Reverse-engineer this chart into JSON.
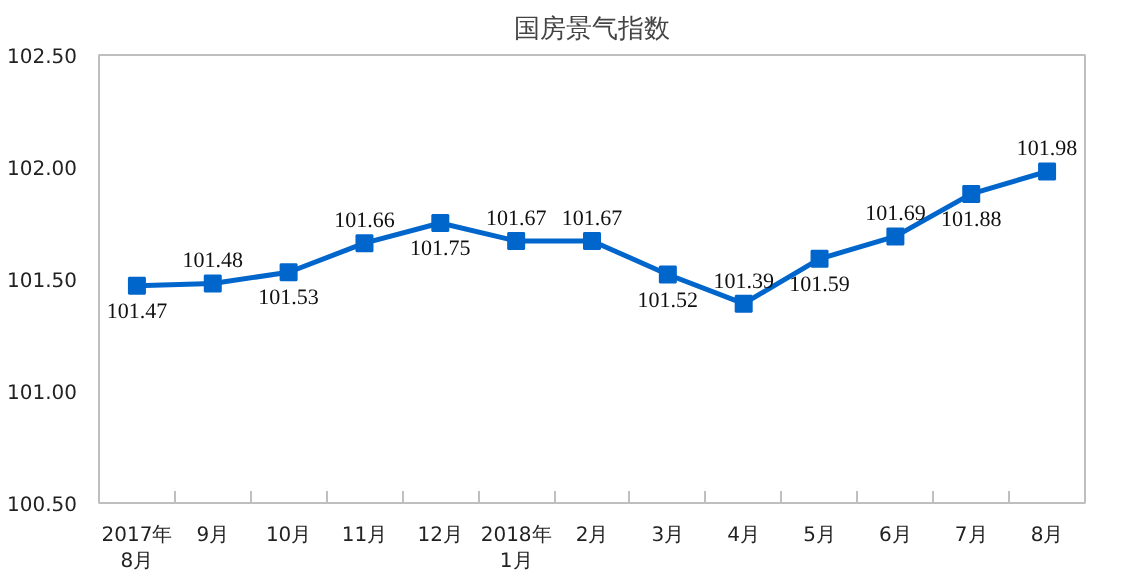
{
  "chart_data": {
    "type": "line",
    "title": "国房景气指数",
    "categories": [
      "2017年\n8月",
      "9月",
      "10月",
      "11月",
      "12月",
      "2018年\n1月",
      "2月",
      "3月",
      "4月",
      "5月",
      "6月",
      "7月",
      "8月"
    ],
    "series": [
      {
        "color": "#0066cc",
        "values": [
          101.47,
          101.48,
          101.53,
          101.66,
          101.75,
          101.67,
          101.67,
          101.52,
          101.39,
          101.59,
          101.69,
          101.88,
          101.98
        ]
      }
    ],
    "ylim": [
      100.5,
      102.5
    ],
    "yticks": [
      {
        "value": 100.5,
        "label": "100.50"
      },
      {
        "value": 101.0,
        "label": "101.00"
      },
      {
        "value": 101.5,
        "label": "101.50"
      },
      {
        "value": 102.0,
        "label": "102.00"
      },
      {
        "value": 102.5,
        "label": "102.50"
      }
    ],
    "data_labels": true,
    "marker": "square",
    "grid": false
  }
}
